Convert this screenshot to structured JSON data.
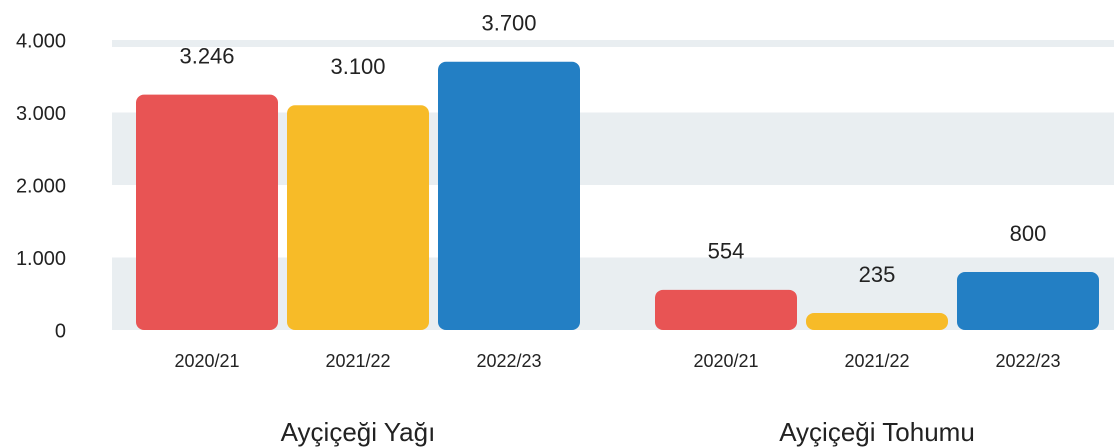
{
  "chart_data": {
    "type": "bar",
    "categories": [
      "Ayçiçeği Yağı",
      "Ayçiçeği Tohumu"
    ],
    "series": [
      {
        "name": "2020/21",
        "color": "#e85454",
        "values": [
          3246,
          554
        ],
        "value_labels": [
          "3.246",
          "554"
        ]
      },
      {
        "name": "2021/22",
        "color": "#f7bb28",
        "values": [
          3100,
          235
        ],
        "value_labels": [
          "3.100",
          "235"
        ]
      },
      {
        "name": "2022/23",
        "color": "#237fc4",
        "values": [
          3700,
          800
        ],
        "value_labels": [
          "3.700",
          "800"
        ]
      }
    ],
    "ylim": [
      0,
      4000
    ],
    "yticks": [
      0,
      {
        "value": 1000,
        "label": "1.000"
      },
      {
        "value": 2000,
        "label": "2.000"
      },
      {
        "value": 3000,
        "label": "3.000"
      },
      {
        "value": 4000,
        "label": "4.000"
      }
    ],
    "grid": true
  }
}
